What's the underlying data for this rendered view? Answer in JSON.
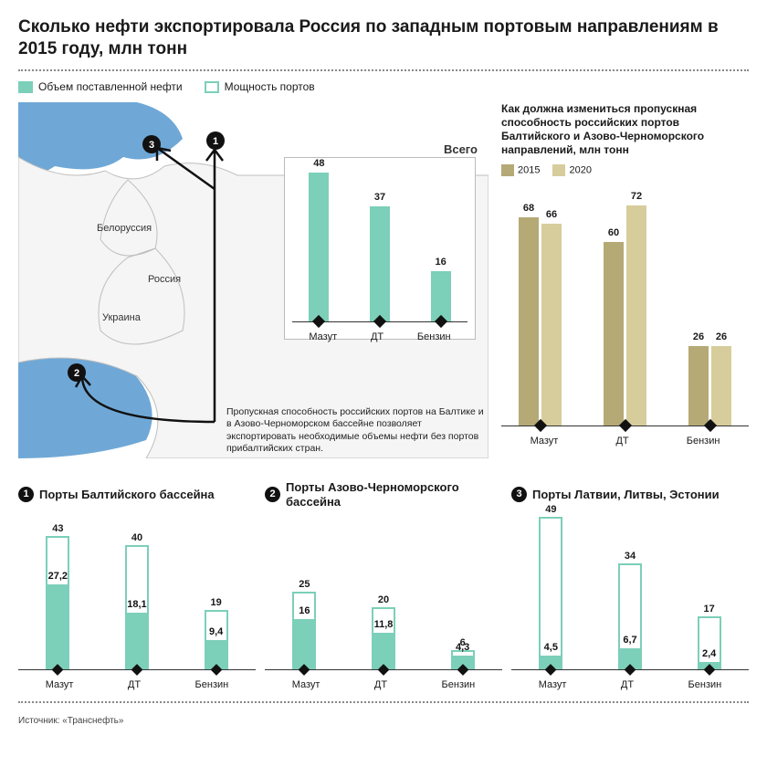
{
  "title": "Сколько нефти экспортировала Россия по западным портовым направлениям в 2015 году, млн тонн",
  "legend": {
    "filled": "Объем поставленной нефти",
    "outline": "Мощность портов"
  },
  "colors": {
    "teal": "#7ccfb9",
    "tealDark": "#5fb9a1",
    "olive2015": "#b5a976",
    "olive2020": "#d7cd9c",
    "sea": "#6fa8d6",
    "land": "#f5f5f5",
    "border": "#bfbfbf",
    "black": "#111111",
    "axis": "#333333"
  },
  "map": {
    "labels": {
      "belarus": "Белоруссия",
      "russia": "Россия",
      "ukraine": "Украина"
    },
    "markers": [
      "1",
      "2",
      "3"
    ],
    "inset": {
      "title": "Всего",
      "categories": [
        "Мазут",
        "ДТ",
        "Бензин"
      ],
      "values": [
        48,
        37,
        16
      ],
      "ymax": 50,
      "bar_color": "#7ccfb9"
    },
    "note": "Пропускная способность российских портов на Балтике и в Азово-Черноморском бассейне позволяет экспортировать необходимые объемы нефти без портов прибалтийских стран."
  },
  "right": {
    "title": "Как должна измениться пропускная способность российских портов Балтийского и Азово-Черноморского направлений, млн тонн",
    "legend": {
      "a": "2015",
      "b": "2020"
    },
    "colors": {
      "a": "#b5a976",
      "b": "#d7cd9c"
    },
    "categories": [
      "Мазут",
      "ДТ",
      "Бензин"
    ],
    "series": {
      "a": [
        68,
        60,
        26
      ],
      "b": [
        66,
        72,
        26
      ]
    },
    "ymax": 80
  },
  "panels": [
    {
      "badge": "1",
      "title": "Порты Балтийского бассейна",
      "categories": [
        "Мазут",
        "ДТ",
        "Бензин"
      ],
      "capacity": [
        43,
        40,
        19
      ],
      "volume": [
        27.2,
        18.1,
        9.4
      ],
      "ymax": 50,
      "volume_labels": [
        "27,2",
        "18,1",
        "9,4"
      ],
      "capacity_labels": [
        "43",
        "40",
        "19"
      ]
    },
    {
      "badge": "2",
      "title": "Порты Азово-Черноморского бассейна",
      "categories": [
        "Мазут",
        "ДТ",
        "Бензин"
      ],
      "capacity": [
        25,
        20,
        6
      ],
      "volume": [
        16,
        11.8,
        4.3
      ],
      "ymax": 50,
      "volume_labels": [
        "16",
        "11,8",
        "4,3"
      ],
      "capacity_labels": [
        "25",
        "20",
        "6"
      ]
    },
    {
      "badge": "3",
      "title": "Порты Латвии, Литвы, Эстонии",
      "categories": [
        "Мазут",
        "ДТ",
        "Бензин"
      ],
      "capacity": [
        49,
        34,
        17
      ],
      "volume": [
        4.5,
        6.7,
        2.4
      ],
      "ymax": 50,
      "volume_labels": [
        "4,5",
        "6,7",
        "2,4"
      ],
      "capacity_labels": [
        "49",
        "34",
        "17"
      ]
    }
  ],
  "source": "Источник: «Транснефть»"
}
